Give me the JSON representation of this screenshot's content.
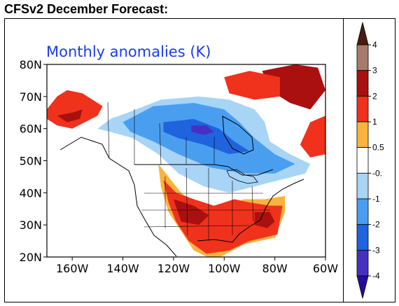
{
  "header": {
    "title": "CFSv2 December Forecast:"
  },
  "chart_data": {
    "type": "heatmap",
    "title": "Monthly anomalies (K)",
    "units": "K",
    "xlim": [
      -170,
      -60
    ],
    "ylim": [
      20,
      80
    ],
    "x_ticks": [
      {
        "value": -160,
        "label": "160W"
      },
      {
        "value": -140,
        "label": "140W"
      },
      {
        "value": -120,
        "label": "120W"
      },
      {
        "value": -100,
        "label": "100W"
      },
      {
        "value": -80,
        "label": "80W"
      },
      {
        "value": -60,
        "label": "60W"
      }
    ],
    "y_ticks": [
      {
        "value": 80,
        "label": "80N"
      },
      {
        "value": 70,
        "label": "70N"
      },
      {
        "value": 60,
        "label": "60N"
      },
      {
        "value": 50,
        "label": "50N"
      },
      {
        "value": 40,
        "label": "40N"
      },
      {
        "value": 30,
        "label": "30N"
      },
      {
        "value": 20,
        "label": "20N"
      }
    ],
    "colorbar": {
      "labels": [
        "4",
        "3",
        "2",
        "1",
        "0.5",
        "-0.",
        "-1",
        "-2",
        "-3",
        "-4"
      ],
      "bins": [
        {
          "color": "#4a1c12",
          "range": "> 4"
        },
        {
          "color": "#a87a6e",
          "range": "3 to 4"
        },
        {
          "color": "#aa1010",
          "range": "2 to 3"
        },
        {
          "color": "#f0321c",
          "range": "1 to 2"
        },
        {
          "color": "#fbb33c",
          "range": "0.5 to 1"
        },
        {
          "color": "#ffffff",
          "range": "-0.5 to 0.5"
        },
        {
          "color": "#a8d4f6",
          "range": "-1 to -0.5"
        },
        {
          "color": "#4a9ef0",
          "range": "-2 to -1"
        },
        {
          "color": "#1f64de",
          "range": "-3 to -2"
        },
        {
          "color": "#4630c4",
          "range": "-4 to -3"
        },
        {
          "color": "#2a0ba0",
          "range": "< -4"
        }
      ]
    },
    "anomaly_regions": [
      {
        "name": "alaska-warm-strong",
        "level": 2,
        "polygon": [
          [
            -170,
            66
          ],
          [
            -166,
            70
          ],
          [
            -162,
            72
          ],
          [
            -156,
            71
          ],
          [
            -152,
            69
          ],
          [
            -148,
            67
          ],
          [
            -150,
            64
          ],
          [
            -155,
            62
          ],
          [
            -160,
            60
          ],
          [
            -166,
            61
          ],
          [
            -170,
            63
          ]
        ]
      },
      {
        "name": "alaska-warm-core",
        "level": 3,
        "polygon": [
          [
            -166,
            64
          ],
          [
            -160,
            65
          ],
          [
            -156,
            66
          ],
          [
            -157,
            63
          ],
          [
            -162,
            62
          ]
        ]
      },
      {
        "name": "canada-cold-weak",
        "level": -1,
        "polygon": [
          [
            -150,
            60
          ],
          [
            -145,
            63
          ],
          [
            -138,
            65
          ],
          [
            -125,
            69
          ],
          [
            -110,
            70
          ],
          [
            -98,
            69
          ],
          [
            -88,
            66
          ],
          [
            -84,
            62
          ],
          [
            -82,
            56
          ],
          [
            -74,
            52
          ],
          [
            -66,
            49
          ],
          [
            -68,
            46
          ],
          [
            -78,
            44
          ],
          [
            -88,
            42
          ],
          [
            -98,
            40
          ],
          [
            -108,
            42
          ],
          [
            -118,
            46
          ],
          [
            -126,
            52
          ],
          [
            -136,
            57
          ],
          [
            -145,
            59
          ]
        ]
      },
      {
        "name": "canada-cold-moderate",
        "level": -2,
        "polygon": [
          [
            -140,
            62
          ],
          [
            -128,
            67
          ],
          [
            -112,
            68
          ],
          [
            -100,
            66
          ],
          [
            -94,
            62
          ],
          [
            -88,
            57
          ],
          [
            -80,
            52
          ],
          [
            -72,
            49
          ],
          [
            -80,
            46
          ],
          [
            -92,
            46
          ],
          [
            -106,
            48
          ],
          [
            -118,
            52
          ],
          [
            -128,
            56
          ],
          [
            -137,
            59
          ]
        ]
      },
      {
        "name": "canada-cold-strong",
        "level": -3,
        "polygon": [
          [
            -124,
            62
          ],
          [
            -112,
            63
          ],
          [
            -102,
            60
          ],
          [
            -96,
            56
          ],
          [
            -90,
            53
          ],
          [
            -98,
            52
          ],
          [
            -108,
            55
          ],
          [
            -118,
            57
          ],
          [
            -124,
            59
          ]
        ]
      },
      {
        "name": "canada-cold-core",
        "level": -4,
        "polygon": [
          [
            -113,
            61
          ],
          [
            -107,
            61
          ],
          [
            -104,
            59
          ],
          [
            -108,
            58
          ],
          [
            -113,
            59
          ]
        ]
      },
      {
        "name": "us-warm-weak",
        "level": 1,
        "polygon": [
          [
            -126,
            49
          ],
          [
            -122,
            45
          ],
          [
            -117,
            40
          ],
          [
            -110,
            36
          ],
          [
            -100,
            36
          ],
          [
            -92,
            38
          ],
          [
            -84,
            38
          ],
          [
            -76,
            39
          ],
          [
            -76,
            34
          ],
          [
            -80,
            26
          ],
          [
            -92,
            24
          ],
          [
            -104,
            19
          ],
          [
            -112,
            22
          ],
          [
            -117,
            28
          ],
          [
            -122,
            34
          ],
          [
            -125,
            42
          ]
        ]
      },
      {
        "name": "us-warm-moderate",
        "level": 2,
        "polygon": [
          [
            -124,
            44
          ],
          [
            -119,
            40
          ],
          [
            -112,
            38
          ],
          [
            -104,
            36
          ],
          [
            -96,
            38
          ],
          [
            -90,
            37
          ],
          [
            -82,
            36
          ],
          [
            -77,
            36
          ],
          [
            -79,
            27
          ],
          [
            -90,
            25
          ],
          [
            -98,
            22
          ],
          [
            -107,
            21
          ],
          [
            -114,
            25
          ],
          [
            -119,
            31
          ],
          [
            -122,
            37
          ]
        ]
      },
      {
        "name": "us-warm-strong",
        "level": 3,
        "polygon": [
          [
            -120,
            38
          ],
          [
            -112,
            36
          ],
          [
            -106,
            33
          ],
          [
            -110,
            30
          ],
          [
            -117,
            31
          ]
        ]
      },
      {
        "name": "southeast-warm-strong",
        "level": 3,
        "polygon": [
          [
            -88,
            34
          ],
          [
            -82,
            34
          ],
          [
            -80,
            31
          ],
          [
            -83,
            29
          ],
          [
            -88,
            30
          ]
        ]
      },
      {
        "name": "greenland-arctic-warm",
        "level": 3,
        "polygon": [
          [
            -85,
            78
          ],
          [
            -72,
            80
          ],
          [
            -63,
            79
          ],
          [
            -60,
            72
          ],
          [
            -66,
            66
          ],
          [
            -74,
            68
          ],
          [
            -82,
            72
          ]
        ]
      },
      {
        "name": "northern-canada-warm",
        "level": 2,
        "polygon": [
          [
            -100,
            76
          ],
          [
            -90,
            78
          ],
          [
            -78,
            76
          ],
          [
            -78,
            70
          ],
          [
            -88,
            69
          ],
          [
            -98,
            71
          ]
        ]
      },
      {
        "name": "labrador-warm",
        "level": 2,
        "polygon": [
          [
            -66,
            62
          ],
          [
            -60,
            64
          ],
          [
            -60,
            52
          ],
          [
            -66,
            51
          ],
          [
            -70,
            55
          ]
        ]
      }
    ]
  }
}
